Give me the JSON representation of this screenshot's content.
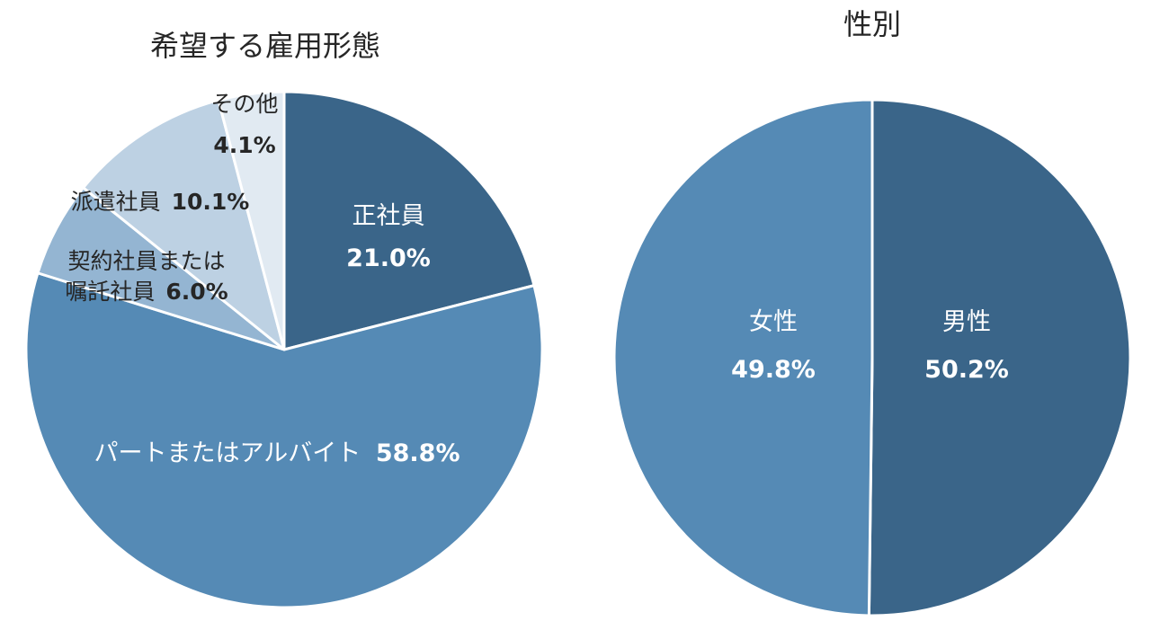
{
  "chart_data": [
    {
      "type": "pie",
      "title": "希望する雇用形態",
      "slices": [
        {
          "label": "正社員",
          "value": 21.0,
          "value_label": "21.0%",
          "color": "#3a6589"
        },
        {
          "label": "パートまたはアルバイト",
          "value": 58.8,
          "value_label": "58.8%",
          "color": "#558ab5"
        },
        {
          "label": "契約社員または嘱託社員",
          "value": 6.0,
          "value_label": "6.0%",
          "color": "#94b5d2"
        },
        {
          "label": "派遣社員",
          "value": 10.1,
          "value_label": "10.1%",
          "color": "#bdd1e3"
        },
        {
          "label": "その他",
          "value": 4.1,
          "value_label": "4.1%",
          "color": "#e1eaf2"
        }
      ],
      "start": "12 o'clock",
      "direction": "clockwise"
    },
    {
      "type": "pie",
      "title": "性別",
      "slices": [
        {
          "label": "男性",
          "value": 50.2,
          "value_label": "50.2%",
          "color": "#3a6589"
        },
        {
          "label": "女性",
          "value": 49.8,
          "value_label": "49.8%",
          "color": "#558ab5"
        }
      ],
      "start": "12 o'clock",
      "direction": "clockwise"
    }
  ],
  "labels": {
    "line1": {
      "keiyaku": "契約社員または",
      "shokutaku": "嘱託社員"
    }
  }
}
